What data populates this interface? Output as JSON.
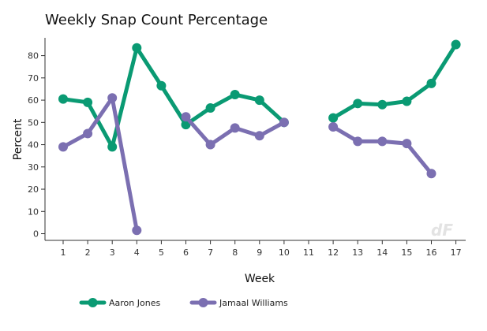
{
  "chart_data": {
    "type": "line",
    "title": "Weekly Snap Count Percentage",
    "xlabel": "Week",
    "ylabel": "Percent",
    "x": [
      "1",
      "2",
      "3",
      "4",
      "5",
      "6",
      "7",
      "8",
      "9",
      "10",
      "11",
      "12",
      "13",
      "14",
      "15",
      "16",
      "17"
    ],
    "ylim": [
      -3,
      88
    ],
    "yticks": [
      0,
      10,
      20,
      30,
      40,
      50,
      60,
      70,
      80
    ],
    "grid": false,
    "legend_position": "bottom-left",
    "watermark": "dF",
    "series": [
      {
        "name": "Aaron Jones",
        "color": "#0a9a73",
        "values": [
          60.5,
          59,
          39,
          83.5,
          66.5,
          49,
          56.5,
          62.5,
          60,
          50,
          null,
          52,
          58.5,
          58,
          59.5,
          67.5,
          85
        ]
      },
      {
        "name": "Jamaal Williams",
        "color": "#7b6fb1",
        "values": [
          39,
          45,
          61,
          1.5,
          null,
          52.5,
          40,
          47.5,
          44,
          50,
          null,
          48,
          41.5,
          41.5,
          40.5,
          27,
          null
        ]
      }
    ]
  }
}
